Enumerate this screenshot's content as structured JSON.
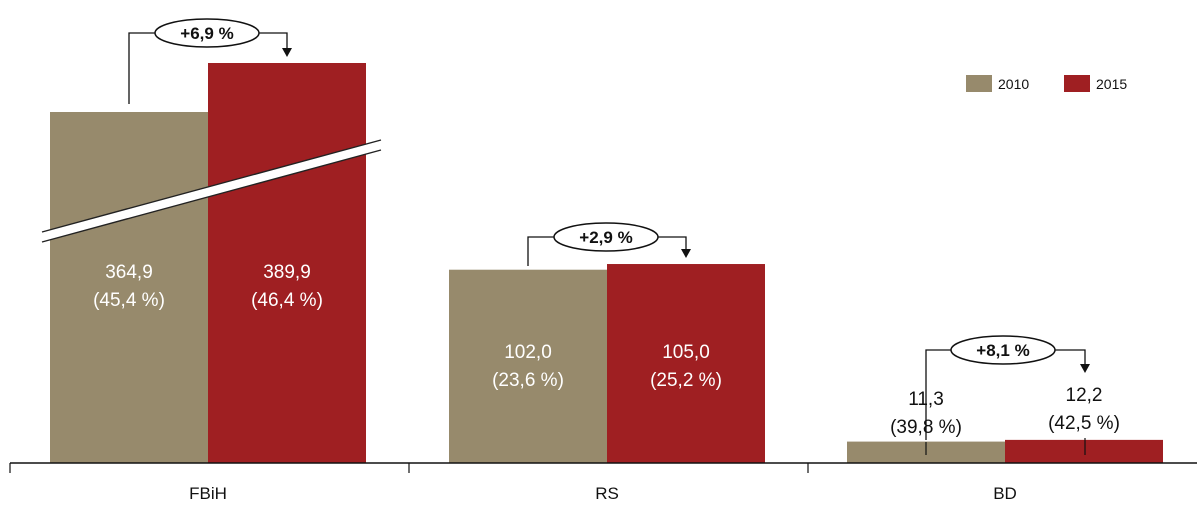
{
  "chart_data": {
    "type": "bar",
    "title": "",
    "xlabel": "",
    "ylabel": "",
    "axis_break": true,
    "legend_position": "top-right",
    "categories": [
      "FBiH",
      "RS",
      "BD"
    ],
    "series": [
      {
        "name": "2010",
        "color": "#978a6c",
        "values": [
          364.9,
          102.0,
          11.3
        ],
        "labels": [
          "364,9",
          "102,0",
          "11,3"
        ],
        "shares": [
          "(45,4 %)",
          "(23,6 %)",
          "(39,8 %)"
        ]
      },
      {
        "name": "2015",
        "color": "#9f1f22",
        "values": [
          389.9,
          105.0,
          12.2
        ],
        "labels": [
          "389,9",
          "105,0",
          "12,2"
        ],
        "shares": [
          "(46,4 %)",
          "(25,2 %)",
          "(42,5 %)"
        ]
      }
    ],
    "changes": [
      "+6,9 %",
      "+2,9 %",
      "+8,1 %"
    ]
  }
}
